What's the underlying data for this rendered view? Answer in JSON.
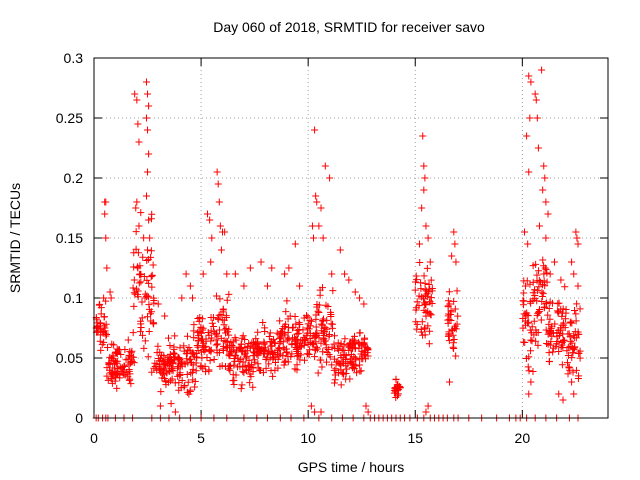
{
  "chart_data": {
    "type": "scatter",
    "title": "Day 060 of 2018, SRMTID for receiver savo",
    "xlabel": "GPS time / hours",
    "ylabel": "SRMTID / TECUs",
    "xlim": [
      0,
      24
    ],
    "ylim": [
      0,
      0.3
    ],
    "x_ticks": [
      0,
      5,
      10,
      15,
      20
    ],
    "y_ticks": [
      0,
      0.05,
      0.1,
      0.15,
      0.2,
      0.25,
      0.3
    ],
    "x_tick_labels": [
      "0",
      "5",
      "10",
      "15",
      "20"
    ],
    "y_tick_labels": [
      "0",
      "0.05",
      "0.1",
      "0.15",
      "0.2",
      "0.25",
      "0.3"
    ],
    "grid": true,
    "marker": "plus",
    "color": "#ff0000",
    "series": [
      {
        "name": "SRMTID",
        "clusters": [
          {
            "from": 0.1,
            "to": 0.6,
            "base": 0.075,
            "spread": 0.03,
            "outliers": [
              [
                0.5,
                0.18
              ],
              [
                0.55,
                0.18
              ],
              [
                0.55,
                0.15
              ],
              [
                0.6,
                0.125
              ],
              [
                0.5,
                0.17
              ],
              [
                0.45,
                0.1
              ]
            ]
          },
          {
            "from": 0.6,
            "to": 1.8,
            "base": 0.045,
            "spread": 0.025,
            "outliers": [
              [
                0.75,
                0.105
              ],
              [
                0.8,
                0.1
              ],
              [
                1.6,
                0.065
              ]
            ]
          },
          {
            "from": 1.8,
            "to": 2.8,
            "base": 0.1,
            "spread": 0.09,
            "outliers": [
              [
                1.9,
                0.27
              ],
              [
                2.0,
                0.265
              ],
              [
                2.05,
                0.245
              ],
              [
                2.1,
                0.23
              ],
              [
                1.95,
                0.175
              ],
              [
                2.0,
                0.18
              ],
              [
                2.45,
                0.28
              ],
              [
                2.5,
                0.27
              ],
              [
                2.55,
                0.26
              ],
              [
                2.45,
                0.25
              ],
              [
                2.5,
                0.24
              ],
              [
                2.55,
                0.22
              ],
              [
                2.5,
                0.205
              ],
              [
                2.45,
                0.185
              ],
              [
                2.55,
                0.165
              ],
              [
                2.6,
                0.15
              ],
              [
                2.5,
                0.14
              ],
              [
                2.1,
                0.16
              ],
              [
                2.05,
                0.125
              ],
              [
                2.15,
                0.12
              ]
            ]
          },
          {
            "from": 2.8,
            "to": 3.7,
            "base": 0.045,
            "spread": 0.03,
            "outliers": [
              [
                3.0,
                0.095
              ],
              [
                3.3,
                0.085
              ],
              [
                3.1,
                0.01
              ],
              [
                3.6,
                0.012
              ]
            ]
          },
          {
            "from": 3.7,
            "to": 4.8,
            "base": 0.045,
            "spread": 0.035,
            "outliers": [
              [
                4.3,
                0.12
              ],
              [
                4.5,
                0.11
              ],
              [
                4.6,
                0.1
              ],
              [
                4.1,
                0.1
              ],
              [
                3.8,
                0.005
              ]
            ]
          },
          {
            "from": 4.8,
            "to": 5.6,
            "base": 0.062,
            "spread": 0.03,
            "outliers": [
              [
                5.3,
                0.17
              ],
              [
                5.4,
                0.165
              ],
              [
                5.5,
                0.15
              ],
              [
                5.45,
                0.13
              ],
              [
                5.1,
                0.12
              ]
            ]
          },
          {
            "from": 5.6,
            "to": 6.3,
            "base": 0.07,
            "spread": 0.045,
            "outliers": [
              [
                5.75,
                0.205
              ],
              [
                5.8,
                0.195
              ],
              [
                5.85,
                0.18
              ],
              [
                5.9,
                0.16
              ],
              [
                6.0,
                0.155
              ],
              [
                6.1,
                0.155
              ],
              [
                5.95,
                0.14
              ],
              [
                6.2,
                0.12
              ]
            ]
          },
          {
            "from": 6.3,
            "to": 7.5,
            "base": 0.05,
            "spread": 0.03,
            "outliers": [
              [
                6.6,
                0.12
              ],
              [
                7.0,
                0.11
              ],
              [
                7.3,
                0.125
              ]
            ]
          },
          {
            "from": 7.5,
            "to": 8.6,
            "base": 0.055,
            "spread": 0.03,
            "outliers": [
              [
                7.8,
                0.13
              ],
              [
                8.3,
                0.125
              ],
              [
                8.1,
                0.11
              ]
            ]
          },
          {
            "from": 8.6,
            "to": 9.8,
            "base": 0.065,
            "spread": 0.035,
            "outliers": [
              [
                9.4,
                0.145
              ],
              [
                9.1,
                0.125
              ],
              [
                8.9,
                0.12
              ],
              [
                9.6,
                0.11
              ]
            ]
          },
          {
            "from": 9.8,
            "to": 10.4,
            "base": 0.07,
            "spread": 0.04,
            "outliers": [
              [
                10.3,
                0.24
              ],
              [
                10.35,
                0.185
              ],
              [
                10.4,
                0.18
              ],
              [
                10.2,
                0.16
              ],
              [
                10.25,
                0.15
              ],
              [
                10.3,
                0.005
              ],
              [
                10.15,
                0.01
              ]
            ]
          },
          {
            "from": 10.4,
            "to": 11.2,
            "base": 0.07,
            "spread": 0.045,
            "outliers": [
              [
                10.8,
                0.21
              ],
              [
                11.0,
                0.2
              ],
              [
                10.6,
                0.175
              ],
              [
                10.5,
                0.16
              ],
              [
                10.7,
                0.15
              ],
              [
                11.1,
                0.12
              ],
              [
                10.6,
                0.005
              ]
            ]
          },
          {
            "from": 11.2,
            "to": 12.0,
            "base": 0.05,
            "spread": 0.035,
            "outliers": [
              [
                11.5,
                0.14
              ],
              [
                11.7,
                0.12
              ],
              [
                11.9,
                0.115
              ]
            ]
          },
          {
            "from": 12.0,
            "to": 12.8,
            "base": 0.055,
            "spread": 0.03,
            "outliers": [
              [
                12.2,
                0.105
              ],
              [
                12.4,
                0.1
              ],
              [
                12.6,
                0.095
              ],
              [
                12.7,
                0.01
              ],
              [
                12.8,
                0.005
              ]
            ]
          },
          {
            "from": 14.0,
            "to": 14.3,
            "base": 0.025,
            "spread": 0.01,
            "outliers": [
              [
                14.1,
                0.032
              ],
              [
                14.2,
                0.02
              ]
            ]
          },
          {
            "from": 15.0,
            "to": 15.8,
            "base": 0.09,
            "spread": 0.055,
            "outliers": [
              [
                15.35,
                0.235
              ],
              [
                15.4,
                0.21
              ],
              [
                15.45,
                0.2
              ],
              [
                15.4,
                0.19
              ],
              [
                15.3,
                0.175
              ],
              [
                15.5,
                0.16
              ],
              [
                15.6,
                0.15
              ],
              [
                15.2,
                0.145
              ],
              [
                15.7,
                0.13
              ],
              [
                15.5,
                0.005
              ],
              [
                15.6,
                0.01
              ]
            ]
          },
          {
            "from": 16.5,
            "to": 17.0,
            "base": 0.08,
            "spread": 0.035,
            "outliers": [
              [
                16.8,
                0.155
              ],
              [
                16.85,
                0.145
              ],
              [
                16.7,
                0.135
              ],
              [
                16.9,
                0.13
              ],
              [
                16.6,
                0.03
              ]
            ]
          },
          {
            "from": 20.0,
            "to": 20.5,
            "base": 0.08,
            "spread": 0.05,
            "outliers": [
              [
                20.3,
                0.285
              ],
              [
                20.4,
                0.28
              ],
              [
                20.35,
                0.25
              ],
              [
                20.2,
                0.235
              ],
              [
                20.3,
                0.205
              ],
              [
                20.1,
                0.155
              ],
              [
                20.25,
                0.145
              ],
              [
                20.15,
                0.11
              ],
              [
                20.4,
                0.03
              ],
              [
                20.3,
                0.02
              ]
            ]
          },
          {
            "from": 20.5,
            "to": 21.2,
            "base": 0.095,
            "spread": 0.06,
            "outliers": [
              [
                20.6,
                0.27
              ],
              [
                20.65,
                0.265
              ],
              [
                20.7,
                0.25
              ],
              [
                20.9,
                0.29
              ],
              [
                20.75,
                0.225
              ],
              [
                21.0,
                0.21
              ],
              [
                21.05,
                0.2
              ],
              [
                20.95,
                0.19
              ],
              [
                21.1,
                0.18
              ],
              [
                21.2,
                0.17
              ],
              [
                20.8,
                0.16
              ],
              [
                21.1,
                0.15
              ]
            ]
          },
          {
            "from": 21.2,
            "to": 22.0,
            "base": 0.07,
            "spread": 0.045,
            "outliers": [
              [
                21.3,
                0.12
              ],
              [
                21.5,
                0.13
              ],
              [
                21.8,
                0.115
              ],
              [
                21.7,
                0.02
              ],
              [
                21.9,
                0.015
              ]
            ]
          },
          {
            "from": 22.0,
            "to": 22.7,
            "base": 0.06,
            "spread": 0.045,
            "outliers": [
              [
                22.5,
                0.155
              ],
              [
                22.55,
                0.15
              ],
              [
                22.6,
                0.145
              ],
              [
                22.3,
                0.13
              ],
              [
                22.4,
                0.12
              ],
              [
                22.6,
                0.11
              ],
              [
                22.3,
                0.03
              ],
              [
                22.4,
                0.02
              ]
            ]
          }
        ],
        "zero_points_x": [
          0.1,
          0.2,
          0.4,
          0.55,
          0.65,
          1.0,
          1.4,
          1.8,
          2.7,
          3.1,
          3.5,
          4.0,
          4.5,
          5.0,
          5.6,
          6.2,
          7.0,
          7.6,
          8.1,
          8.7,
          9.2,
          9.8,
          10.5,
          11.1,
          11.6,
          12.1,
          12.6,
          12.9,
          13.1,
          13.3,
          13.5,
          13.7,
          13.9,
          14.1,
          14.3,
          14.5,
          14.75,
          15.1,
          15.4,
          15.7,
          15.9,
          16.1,
          16.3,
          16.5,
          16.8,
          17.0,
          17.5,
          18.1,
          18.8,
          19.4,
          19.7,
          19.9,
          20.2,
          20.6,
          21.1,
          21.6,
          22.2,
          22.6
        ]
      }
    ]
  }
}
